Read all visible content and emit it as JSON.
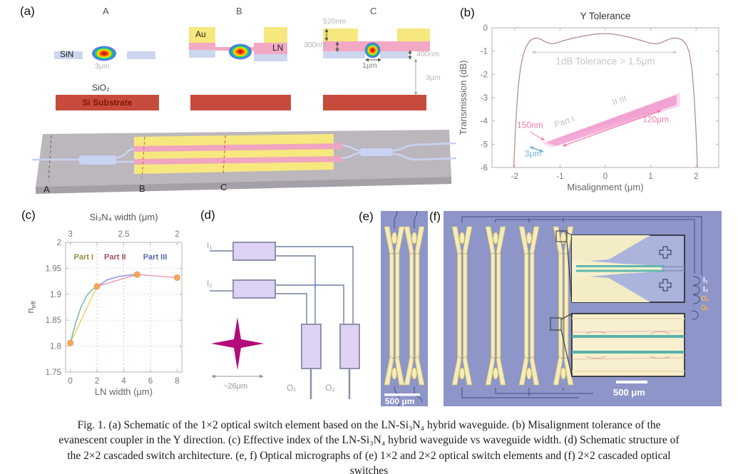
{
  "panels": {
    "a": {
      "label": "(a)",
      "sections": [
        {
          "name": "A"
        },
        {
          "name": "B"
        },
        {
          "name": "C"
        }
      ],
      "materials": {
        "sin": "SiN",
        "sio2": "SiO₂",
        "substrate": "Si Substrate",
        "au": "Au",
        "ln": "LN"
      },
      "dimensions": {
        "mode_width": "3μm",
        "au_thickness": "520nm",
        "ln_thickness": "300nm",
        "sin_thickness": "400nm",
        "ridge_width": "1μm",
        "oxide_thickness": "3μm"
      },
      "cut_labels": [
        "A",
        "B",
        "C"
      ]
    },
    "b": {
      "label": "(b)"
    },
    "c": {
      "label": "(c)"
    },
    "d": {
      "label": "(d)",
      "input_labels": [
        "I₁",
        "I₂"
      ],
      "output_labels": [
        "O₁",
        "O₂"
      ],
      "crossing_dim": "~26μm"
    },
    "e": {
      "label": "(e)",
      "scale_bar": "500 μm"
    },
    "f": {
      "label": "(f)",
      "scale_bar": "500 μm",
      "ports": [
        {
          "text": "I₁",
          "color": "#ffffff"
        },
        {
          "text": "I₂",
          "color": "#ffffff"
        },
        {
          "text": "O₂",
          "color": "#f0b84c"
        },
        {
          "text": "O₁",
          "color": "#f0b84c"
        }
      ]
    }
  },
  "chart_data": [
    {
      "id": "y-tolerance",
      "type": "line",
      "title": "Y Tolerance",
      "xlabel": "Misalignment (μm)",
      "ylabel": "Transmission (dB)",
      "xlim": [
        -2.5,
        2.5
      ],
      "ylim": [
        -6,
        0
      ],
      "xticks": [
        -2,
        -1,
        0,
        1,
        2
      ],
      "yticks": [
        0,
        -1,
        -2,
        -3,
        -4,
        -5,
        -6
      ],
      "grid": false,
      "legend": "none",
      "series": [
        {
          "name": "transmission",
          "color": "#b08686",
          "x": [
            -2.02,
            -1.99,
            -1.96,
            -1.92,
            -1.87,
            -1.81,
            -1.74,
            -1.66,
            -1.58,
            -1.5,
            -1.42,
            -1.32,
            -1.22,
            -1.12,
            -1.0,
            -0.88,
            -0.75,
            -0.6,
            -0.45,
            -0.3,
            -0.15,
            0.0,
            0.15,
            0.3,
            0.45,
            0.6,
            0.75,
            0.9,
            1.02,
            1.12,
            1.22,
            1.32,
            1.42,
            1.52,
            1.62,
            1.7,
            1.78,
            1.85,
            1.91,
            1.96,
            2.0,
            2.03
          ],
          "y": [
            -6,
            -4.7,
            -3.6,
            -2.5,
            -1.7,
            -1.15,
            -0.78,
            -0.55,
            -0.46,
            -0.44,
            -0.5,
            -0.6,
            -0.68,
            -0.67,
            -0.6,
            -0.53,
            -0.46,
            -0.4,
            -0.34,
            -0.29,
            -0.26,
            -0.25,
            -0.27,
            -0.31,
            -0.37,
            -0.44,
            -0.52,
            -0.61,
            -0.67,
            -0.69,
            -0.65,
            -0.56,
            -0.48,
            -0.44,
            -0.46,
            -0.53,
            -0.7,
            -1.05,
            -1.8,
            -3.0,
            -4.5,
            -6
          ]
        }
      ],
      "tolerance_annotation": {
        "text": "1dB Tolerance > 1.5μm",
        "color": "#c6c6c6",
        "arrow_y": -1.05,
        "arrow_x1": -1.62,
        "arrow_x2": 1.58,
        "text_x": 0,
        "text_y": -1.58
      },
      "inset_labels": [
        {
          "text": "150nm",
          "color": "#f279a8",
          "x": -1.95,
          "y": -4.3,
          "rotate": 0
        },
        {
          "text": "120μm",
          "color": "#f279a8",
          "x": 0.82,
          "y": -4.05,
          "rotate": 0
        },
        {
          "text": "3μm",
          "color": "#6cb4d8",
          "x": -1.78,
          "y": -5.52,
          "rotate": 0
        },
        {
          "text": "Part I",
          "color": "#c2c2c2",
          "x": -1.1,
          "y": -4.28,
          "rotate": -18
        },
        {
          "text": "II  III",
          "color": "#c2c2c2",
          "x": 0.18,
          "y": -3.32,
          "rotate": -18
        }
      ]
    },
    {
      "id": "neff-vs-width",
      "type": "line",
      "xlabel": "LN width (μm)",
      "ylabel_base": "n",
      "ylabel_sub": "eff",
      "top_axis_label": "Si₃N₄ width (μm)",
      "top_ticks": [
        {
          "label": "3",
          "x": 0
        },
        {
          "label": "2.5",
          "x": 4
        },
        {
          "label": "2",
          "x": 8
        }
      ],
      "xlim": [
        -0.35,
        8.35
      ],
      "ylim": [
        1.75,
        2.0
      ],
      "xticks": [
        0,
        2,
        4,
        6,
        8
      ],
      "yticks": [
        2,
        1.95,
        1.9,
        1.85,
        1.8,
        1.75
      ],
      "vgrid": [
        {
          "x": 2,
          "color": "#f2bcc8"
        },
        {
          "x": 4,
          "color": "#f2bcc8"
        },
        {
          "x": 6,
          "color": "#c6cfec"
        }
      ],
      "hgrid": [
        {
          "y": 1.95,
          "color": "#ead2d8"
        },
        {
          "y": 1.9,
          "color": "#ead2d8"
        },
        {
          "y": 1.85,
          "color": "#ead2d8"
        },
        {
          "y": 1.8,
          "color": "#ead2d8"
        }
      ],
      "series": [
        {
          "name": "part1-straight",
          "color": "#edd36e",
          "x": [
            0,
            2
          ],
          "y": [
            1.806,
            1.915
          ]
        },
        {
          "name": "part1-curve",
          "color": "#74bfb6",
          "x": [
            0,
            0.4,
            0.8,
            1.2,
            1.6,
            2
          ],
          "y": [
            1.806,
            1.845,
            1.875,
            1.896,
            1.908,
            1.915
          ]
        },
        {
          "name": "part2-curve",
          "color": "#8c9ade",
          "x": [
            2,
            2.8,
            3.6,
            4.4,
            5
          ],
          "y": [
            1.915,
            1.928,
            1.934,
            1.937,
            1.938
          ]
        },
        {
          "name": "part2-3-straight",
          "color": "#f4a0b8",
          "x": [
            2,
            5,
            8
          ],
          "y": [
            1.915,
            1.938,
            1.932
          ]
        }
      ],
      "markers": {
        "color": "#f6a95c",
        "edge": "#e8924a",
        "x": [
          0,
          2,
          5,
          8
        ],
        "y": [
          1.806,
          1.915,
          1.938,
          1.932
        ]
      },
      "region_labels": [
        {
          "text": "Part I",
          "color": "#9a8b42",
          "x": 1.0,
          "y": 1.967
        },
        {
          "text": "Part II",
          "color": "#a2525e",
          "x": 3.35,
          "y": 1.967
        },
        {
          "text": "Part III",
          "color": "#5a68a8",
          "x": 6.35,
          "y": 1.967
        }
      ]
    }
  ],
  "caption": {
    "lines": [
      "Fig. 1. (a) Schematic of the 1×2 optical switch element based on the LN-Si₃N₄ hybrid waveguide. (b) Misalignment tolerance of the",
      "evanescent coupler in the Y direction. (c) Effective index of the LN-Si₃N₄ hybrid waveguide vs waveguide width. (d) Schematic structure of",
      "the 2×2 cascaded switch architecture. (e, f) Optical micrographs of (e) 1×2 and 2×2 optical switch elements and (f) 2×2 cascaded optical",
      "switches"
    ]
  },
  "colors": {
    "au": "#f6e87e",
    "ln": "#f2a9c4",
    "sin": "#cdd6ef",
    "substrate": "#c74b3d",
    "curve_b": "#b08686",
    "marker_orange": "#f6a95c",
    "micrograph_bg": "#8d95c9",
    "device_fill": "#f4ecba",
    "device_stroke": "#cdbb6e",
    "inset1_bg": "#aab4dc",
    "inset2_bg": "#f8efcf",
    "waveguide_teal": "#58b4ac",
    "schematic_wire": "#7080a0",
    "crossing_magenta": "#b40a7c",
    "mzi_fill": "#ded2f4"
  }
}
